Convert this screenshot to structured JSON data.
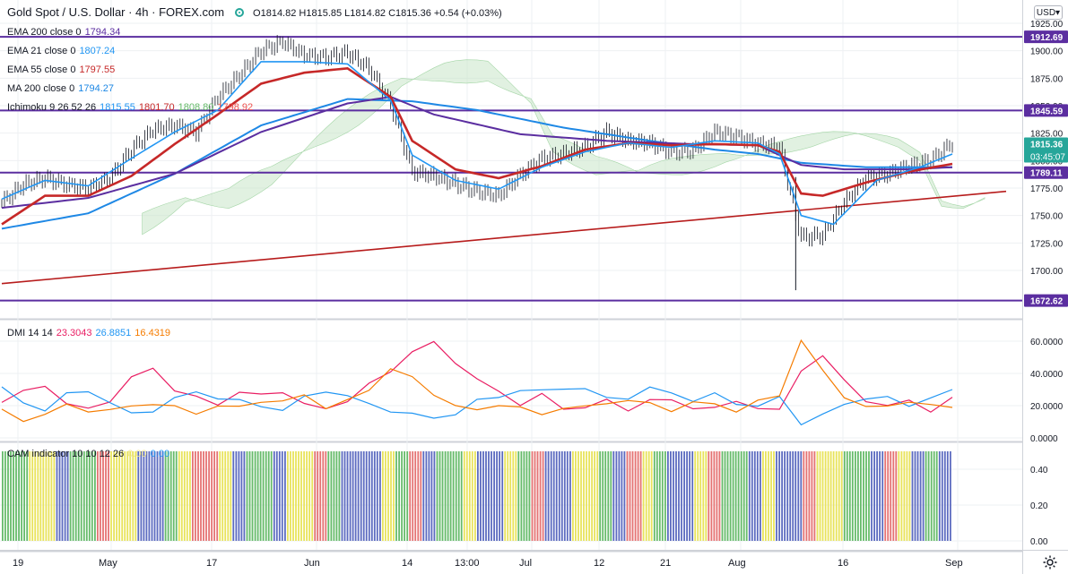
{
  "header": {
    "symbol": "Gold Spot / U.S. Dollar · 4h · FOREX.com",
    "ohlc": "O1814.82 H1815.85 L1814.82 C1815.36 +0.54 (+0.03%)",
    "currency": "USD",
    "status_icon": "market-status-dot-icon"
  },
  "indicators": [
    {
      "label": "EMA 200 close 0",
      "value": "1794.34",
      "color": "#5b2ea0"
    },
    {
      "label": "EMA 21 close 0",
      "value": "1807.24",
      "color": "#2196f3"
    },
    {
      "label": "EMA 55 close 0",
      "value": "1797.55",
      "color": "#c62828"
    },
    {
      "label": "MA 200 close 0",
      "value": "1794.27",
      "color": "#1e88e5"
    }
  ],
  "ichimoku": {
    "label": "Ichimoku 9 26 52 26",
    "values": [
      "1815.55",
      "1801.70",
      "1808.80",
      "1798.92"
    ],
    "colors": [
      "#2196f3",
      "#c62828",
      "#66bb6a",
      "#ef5350"
    ]
  },
  "dmi": {
    "label": "DMI 14 14",
    "values": [
      "23.3043",
      "26.8851",
      "16.4319"
    ],
    "colors": [
      "#e91e63",
      "#2196f3",
      "#f57c00"
    ]
  },
  "cam": {
    "label": "CAM indicator 10 10 12 26",
    "values": [
      "0.00",
      "0.00"
    ],
    "colors": [
      "#f0e68c",
      "#2196f3"
    ]
  },
  "colors": {
    "up_down": "#131722",
    "grid": "#eef0f3",
    "hline": "#5b2ea0",
    "trend": "#b71c1c",
    "cloud_up": "#c8e6c9",
    "cloud_down": "#f8cccc"
  },
  "chart_data": [
    {
      "type": "candlestick",
      "pane": "price",
      "ylim": [
        1672,
        1925
      ],
      "yticks": [
        "1925.00",
        "1900.00",
        "1875.00",
        "1850.00",
        "1825.00",
        "1800.00",
        "1775.00",
        "1750.00",
        "1725.00",
        "1700.00"
      ],
      "xticks": [
        "19",
        "May",
        "17",
        "Jun",
        "14",
        "13:00",
        "Jul",
        "12",
        "21",
        "Aug",
        "16",
        "Sep"
      ],
      "current_price": "1815.36",
      "countdown": "03:45:07",
      "horizontal_levels": [
        "1912.69",
        "1845.59",
        "1789.11",
        "1672.62"
      ],
      "price_path": [
        [
          0,
          1762
        ],
        [
          4,
          1778
        ],
        [
          8,
          1784
        ],
        [
          12,
          1778
        ],
        [
          16,
          1775
        ],
        [
          20,
          1784
        ],
        [
          24,
          1810
        ],
        [
          28,
          1828
        ],
        [
          32,
          1832
        ],
        [
          36,
          1826
        ],
        [
          40,
          1858
        ],
        [
          44,
          1878
        ],
        [
          48,
          1900
        ],
        [
          52,
          1908
        ],
        [
          56,
          1896
        ],
        [
          60,
          1894
        ],
        [
          64,
          1898
        ],
        [
          68,
          1884
        ],
        [
          72,
          1852
        ],
        [
          76,
          1790
        ],
        [
          80,
          1786
        ],
        [
          84,
          1779
        ],
        [
          88,
          1772
        ],
        [
          92,
          1768
        ],
        [
          96,
          1787
        ],
        [
          100,
          1802
        ],
        [
          104,
          1806
        ],
        [
          108,
          1812
        ],
        [
          112,
          1826
        ],
        [
          116,
          1818
        ],
        [
          120,
          1816
        ],
        [
          124,
          1808
        ],
        [
          128,
          1809
        ],
        [
          132,
          1826
        ],
        [
          136,
          1822
        ],
        [
          140,
          1815
        ],
        [
          144,
          1812
        ],
        [
          148,
          1730
        ],
        [
          152,
          1732
        ],
        [
          156,
          1762
        ],
        [
          160,
          1784
        ],
        [
          164,
          1788
        ],
        [
          168,
          1795
        ],
        [
          172,
          1800
        ],
        [
          176,
          1816
        ]
      ],
      "ema21": [
        [
          0,
          1765
        ],
        [
          8,
          1782
        ],
        [
          16,
          1777
        ],
        [
          24,
          1802
        ],
        [
          32,
          1826
        ],
        [
          40,
          1846
        ],
        [
          48,
          1890
        ],
        [
          56,
          1890
        ],
        [
          64,
          1888
        ],
        [
          72,
          1855
        ],
        [
          76,
          1805
        ],
        [
          84,
          1782
        ],
        [
          92,
          1774
        ],
        [
          100,
          1794
        ],
        [
          108,
          1808
        ],
        [
          116,
          1816
        ],
        [
          124,
          1812
        ],
        [
          132,
          1818
        ],
        [
          140,
          1816
        ],
        [
          144,
          1806
        ],
        [
          148,
          1750
        ],
        [
          154,
          1742
        ],
        [
          162,
          1782
        ],
        [
          170,
          1794
        ],
        [
          176,
          1806
        ]
      ],
      "ema55": [
        [
          0,
          1742
        ],
        [
          8,
          1768
        ],
        [
          16,
          1768
        ],
        [
          24,
          1786
        ],
        [
          32,
          1815
        ],
        [
          40,
          1842
        ],
        [
          48,
          1870
        ],
        [
          56,
          1880
        ],
        [
          64,
          1884
        ],
        [
          72,
          1858
        ],
        [
          76,
          1818
        ],
        [
          84,
          1792
        ],
        [
          92,
          1784
        ],
        [
          100,
          1795
        ],
        [
          108,
          1810
        ],
        [
          116,
          1816
        ],
        [
          124,
          1814
        ],
        [
          132,
          1815
        ],
        [
          140,
          1814
        ],
        [
          144,
          1808
        ],
        [
          148,
          1770
        ],
        [
          152,
          1768
        ],
        [
          160,
          1780
        ],
        [
          168,
          1790
        ],
        [
          176,
          1797
        ]
      ],
      "ema200": [
        [
          0,
          1757
        ],
        [
          16,
          1766
        ],
        [
          32,
          1788
        ],
        [
          48,
          1826
        ],
        [
          64,
          1852
        ],
        [
          72,
          1858
        ],
        [
          80,
          1842
        ],
        [
          96,
          1824
        ],
        [
          112,
          1818
        ],
        [
          128,
          1815
        ],
        [
          140,
          1814
        ],
        [
          148,
          1796
        ],
        [
          156,
          1792
        ],
        [
          168,
          1792
        ],
        [
          176,
          1794
        ]
      ],
      "ma200": [
        [
          0,
          1738
        ],
        [
          16,
          1752
        ],
        [
          32,
          1788
        ],
        [
          48,
          1832
        ],
        [
          64,
          1856
        ],
        [
          76,
          1854
        ],
        [
          88,
          1846
        ],
        [
          104,
          1830
        ],
        [
          120,
          1818
        ],
        [
          132,
          1810
        ],
        [
          140,
          1806
        ],
        [
          148,
          1798
        ],
        [
          160,
          1794
        ],
        [
          176,
          1794
        ]
      ],
      "trend_line": [
        [
          0,
          1688
        ],
        [
          176,
          1772
        ]
      ]
    },
    {
      "type": "line",
      "pane": "dmi",
      "ylim": [
        0,
        65
      ],
      "yticks": [
        "60.0000",
        "40.0000",
        "20.0000",
        "0.0000"
      ],
      "series": [
        {
          "name": "",
          "color": "#e91e63",
          "values": [
            22,
            28,
            34,
            20,
            18,
            24,
            36,
            44,
            30,
            24,
            22,
            28,
            26,
            30,
            20,
            18,
            24,
            32,
            42,
            54,
            58,
            48,
            36,
            28,
            22,
            26,
            18,
            20,
            22,
            18,
            24,
            22,
            20,
            18,
            22,
            20,
            16,
            42,
            52,
            34,
            24,
            20,
            22,
            18,
            24
          ]
        },
        {
          "name": "",
          "color": "#2196f3",
          "values": [
            30,
            22,
            18,
            26,
            30,
            22,
            14,
            18,
            24,
            28,
            26,
            22,
            20,
            18,
            24,
            30,
            26,
            20,
            18,
            14,
            12,
            16,
            22,
            26,
            30,
            28,
            32,
            30,
            24,
            26,
            30,
            28,
            24,
            26,
            22,
            20,
            24,
            10,
            14,
            20,
            26,
            24,
            20,
            26,
            28
          ]
        },
        {
          "name": "",
          "color": "#f57c00",
          "values": [
            16,
            12,
            14,
            20,
            18,
            16,
            20,
            22,
            18,
            16,
            20,
            18,
            24,
            22,
            26,
            20,
            22,
            30,
            44,
            36,
            28,
            20,
            16,
            22,
            18,
            14,
            20,
            18,
            22,
            24,
            20,
            18,
            22,
            20,
            18,
            22,
            26,
            62,
            40,
            26,
            20,
            18,
            24,
            20,
            18
          ]
        }
      ]
    },
    {
      "type": "bar",
      "pane": "cam",
      "ylim": [
        0,
        0.5
      ],
      "yticks": [
        "0.40",
        "0.20",
        "0.00"
      ],
      "segment_colors": [
        "#66bb6a",
        "#5c6bc0",
        "#e8e35b",
        "#e57373"
      ],
      "segments": [
        0,
        0,
        2,
        2,
        1,
        0,
        0,
        3,
        2,
        2,
        1,
        1,
        0,
        2,
        3,
        3,
        2,
        1,
        0,
        0,
        1,
        2,
        2,
        3,
        0,
        1,
        1,
        1,
        2,
        0,
        3,
        1,
        0,
        0,
        2,
        1,
        1,
        2,
        0,
        3,
        1,
        1,
        2,
        2,
        0,
        1,
        3,
        2,
        0,
        1,
        1,
        2,
        3,
        0,
        0,
        1,
        2,
        1,
        1,
        3,
        2,
        2,
        0,
        0,
        1,
        3,
        2,
        1,
        0,
        1
      ]
    }
  ]
}
